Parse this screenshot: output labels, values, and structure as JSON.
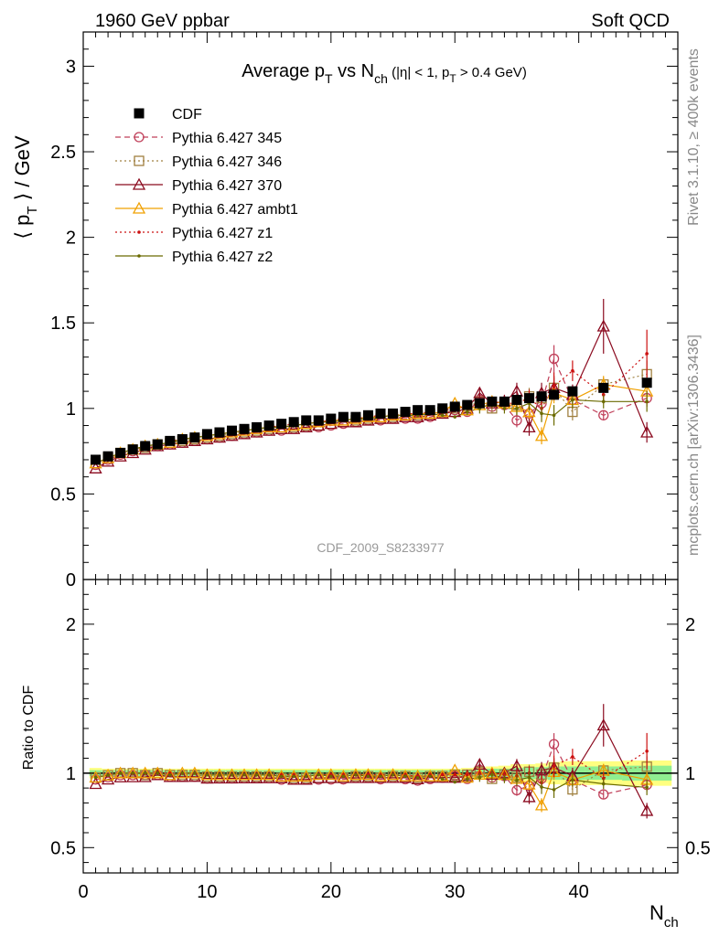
{
  "header": {
    "left": "1960 GeV ppbar",
    "right": "Soft QCD"
  },
  "side_texts": {
    "rivet": "Rivet 3.1.10, ≥ 400k events",
    "mcplots": "mcplots.cern.ch [arXiv:1306.3436]"
  },
  "colors": {
    "CDF": "#000000",
    "p345": "#c0405a",
    "p346": "#a08040",
    "p370": "#8b0a1f",
    "ambt1": "#f0a000",
    "z1": "#cc1010",
    "z2": "#6b6b00",
    "band_green": "#90ee90",
    "band_yellow": "#ffff80"
  },
  "chart_data": [
    {
      "type": "scatter",
      "title_parts": {
        "main": "Average p",
        "sub1": "T",
        "mid": " vs N",
        "sub2": "ch",
        "cut1": " (|η| < 1, p",
        "cut_sub": "T",
        "cut2": " > 0.4 GeV)"
      },
      "ylabel_parts": {
        "a": "⟨ p",
        "sub": "T",
        "b": " ⟩ / GeV"
      },
      "xlabel_parts": {
        "a": "N",
        "sub": "ch"
      },
      "analysis_label": "CDF_2009_S8233977",
      "xlim": [
        0,
        48
      ],
      "ylim": [
        0,
        3.2
      ],
      "yticks": [
        {
          "v": 0,
          "label": "0"
        },
        {
          "v": 0.5,
          "label": "0.5"
        },
        {
          "v": 1,
          "label": "1"
        },
        {
          "v": 1.5,
          "label": "1.5"
        },
        {
          "v": 2,
          "label": "2"
        },
        {
          "v": 2.5,
          "label": "2.5"
        },
        {
          "v": 3,
          "label": "3"
        }
      ],
      "xticks": [
        {
          "v": 0,
          "label": "0"
        },
        {
          "v": 10,
          "label": "10"
        },
        {
          "v": 20,
          "label": "20"
        },
        {
          "v": 30,
          "label": "30"
        },
        {
          "v": 40,
          "label": "40"
        }
      ],
      "series": [
        {
          "key": "CDF",
          "name": "CDF",
          "marker": "filled-square",
          "line": "none",
          "x": [
            1,
            2,
            3,
            4,
            5,
            6,
            7,
            8,
            9,
            10,
            11,
            12,
            13,
            14,
            15,
            16,
            17,
            18,
            19,
            20,
            21,
            22,
            23,
            24,
            25,
            26,
            27,
            28,
            29,
            30,
            31,
            32,
            33,
            34,
            35,
            36,
            37,
            38,
            39.5,
            42,
            45.5
          ],
          "y": [
            0.7,
            0.72,
            0.74,
            0.76,
            0.78,
            0.79,
            0.81,
            0.82,
            0.83,
            0.85,
            0.86,
            0.87,
            0.88,
            0.89,
            0.9,
            0.91,
            0.92,
            0.93,
            0.93,
            0.94,
            0.95,
            0.95,
            0.96,
            0.97,
            0.97,
            0.98,
            0.99,
            0.99,
            1.0,
            1.01,
            1.02,
            1.03,
            1.04,
            1.04,
            1.05,
            1.06,
            1.07,
            1.08,
            1.1,
            1.12,
            1.15
          ]
        },
        {
          "key": "p345",
          "name": "Pythia 6.427 345",
          "marker": "open-circle",
          "line": "dashed",
          "x": [
            1,
            2,
            3,
            4,
            5,
            6,
            7,
            8,
            9,
            10,
            11,
            12,
            13,
            14,
            15,
            16,
            17,
            18,
            19,
            20,
            21,
            22,
            23,
            24,
            25,
            26,
            27,
            28,
            29,
            30,
            31,
            32,
            33,
            34,
            35,
            36,
            37,
            38,
            39.5,
            42,
            45.5
          ],
          "y": [
            0.67,
            0.7,
            0.73,
            0.75,
            0.77,
            0.78,
            0.79,
            0.8,
            0.81,
            0.82,
            0.83,
            0.84,
            0.85,
            0.86,
            0.87,
            0.87,
            0.88,
            0.89,
            0.89,
            0.9,
            0.91,
            0.92,
            0.93,
            0.93,
            0.94,
            0.94,
            0.94,
            0.95,
            0.97,
            0.99,
            0.98,
            1.05,
            1.01,
            1.02,
            0.93,
            0.97,
            1.03,
            1.29,
            1.05,
            0.96,
            1.06
          ],
          "err": [
            0,
            0,
            0,
            0,
            0,
            0,
            0,
            0,
            0,
            0,
            0,
            0,
            0,
            0,
            0,
            0,
            0,
            0,
            0,
            0,
            0,
            0,
            0,
            0,
            0,
            0,
            0,
            0,
            0,
            0,
            0.02,
            0.03,
            0.03,
            0.03,
            0.04,
            0.05,
            0.05,
            0.08,
            0.06,
            0.03,
            0.05
          ]
        },
        {
          "key": "p346",
          "name": "Pythia 6.427 346",
          "marker": "open-square",
          "line": "dotted",
          "x": [
            1,
            2,
            3,
            4,
            5,
            6,
            7,
            8,
            9,
            10,
            11,
            12,
            13,
            14,
            15,
            16,
            17,
            18,
            19,
            20,
            21,
            22,
            23,
            24,
            25,
            26,
            27,
            28,
            29,
            30,
            31,
            32,
            33,
            34,
            35,
            36,
            37,
            38,
            39.5,
            42,
            45.5
          ],
          "y": [
            0.68,
            0.71,
            0.74,
            0.76,
            0.77,
            0.79,
            0.8,
            0.81,
            0.82,
            0.83,
            0.84,
            0.85,
            0.86,
            0.87,
            0.88,
            0.88,
            0.89,
            0.9,
            0.9,
            0.91,
            0.92,
            0.93,
            0.94,
            0.94,
            0.95,
            0.96,
            0.96,
            0.97,
            0.98,
            1.0,
            1.01,
            1.04,
            1.0,
            1.03,
            1.02,
            1.07,
            1.06,
            1.12,
            0.98,
            1.14,
            1.2
          ],
          "err": [
            0,
            0,
            0,
            0,
            0,
            0,
            0,
            0,
            0,
            0,
            0,
            0,
            0,
            0,
            0,
            0,
            0,
            0,
            0,
            0,
            0,
            0,
            0,
            0,
            0,
            0,
            0,
            0,
            0,
            0,
            0.02,
            0.03,
            0.03,
            0.03,
            0.04,
            0.05,
            0.05,
            0.06,
            0.05,
            0.04,
            0.08
          ]
        },
        {
          "key": "p370",
          "name": "Pythia 6.427 370",
          "marker": "open-triangle",
          "line": "solid",
          "x": [
            1,
            2,
            3,
            4,
            5,
            6,
            7,
            8,
            9,
            10,
            11,
            12,
            13,
            14,
            15,
            16,
            17,
            18,
            19,
            20,
            21,
            22,
            23,
            24,
            25,
            26,
            27,
            28,
            29,
            30,
            31,
            32,
            33,
            34,
            35,
            36,
            37,
            38,
            39.5,
            42,
            45.5
          ],
          "y": [
            0.65,
            0.69,
            0.72,
            0.74,
            0.76,
            0.78,
            0.79,
            0.8,
            0.81,
            0.82,
            0.83,
            0.84,
            0.85,
            0.86,
            0.87,
            0.88,
            0.88,
            0.89,
            0.9,
            0.91,
            0.92,
            0.92,
            0.93,
            0.94,
            0.94,
            0.95,
            0.95,
            0.96,
            0.97,
            0.98,
            1.0,
            1.09,
            1.03,
            1.04,
            1.1,
            0.89,
            1.09,
            1.12,
            1.08,
            1.48,
            0.86
          ],
          "err": [
            0,
            0,
            0,
            0,
            0,
            0,
            0,
            0,
            0,
            0,
            0,
            0,
            0,
            0,
            0,
            0,
            0,
            0,
            0,
            0,
            0,
            0,
            0,
            0,
            0,
            0,
            0,
            0,
            0,
            0,
            0.02,
            0.03,
            0.03,
            0.04,
            0.05,
            0.05,
            0.06,
            0.07,
            0.06,
            0.16,
            0.06
          ]
        },
        {
          "key": "ambt1",
          "name": "Pythia 6.427 ambt1",
          "marker": "open-triangle",
          "line": "solid",
          "x": [
            1,
            2,
            3,
            4,
            5,
            6,
            7,
            8,
            9,
            10,
            11,
            12,
            13,
            14,
            15,
            16,
            17,
            18,
            19,
            20,
            21,
            22,
            23,
            24,
            25,
            26,
            27,
            28,
            29,
            30,
            31,
            32,
            33,
            34,
            35,
            36,
            37,
            38,
            39.5,
            42,
            45.5
          ],
          "y": [
            0.68,
            0.71,
            0.74,
            0.76,
            0.78,
            0.79,
            0.8,
            0.82,
            0.83,
            0.84,
            0.85,
            0.86,
            0.87,
            0.88,
            0.89,
            0.89,
            0.9,
            0.91,
            0.92,
            0.93,
            0.93,
            0.94,
            0.95,
            0.95,
            0.96,
            0.96,
            0.97,
            0.97,
            0.98,
            1.03,
            0.99,
            1.02,
            1.04,
            1.03,
            1.01,
            0.98,
            0.84,
            1.09,
            1.05,
            1.14,
            1.1
          ],
          "err": [
            0,
            0,
            0,
            0,
            0,
            0,
            0,
            0,
            0,
            0,
            0,
            0,
            0,
            0,
            0,
            0,
            0,
            0,
            0,
            0,
            0,
            0,
            0,
            0,
            0,
            0,
            0,
            0,
            0,
            0,
            0.02,
            0.03,
            0.03,
            0.03,
            0.04,
            0.04,
            0.05,
            0.06,
            0.05,
            0.05,
            0.06
          ]
        },
        {
          "key": "z1",
          "name": "Pythia 6.427 z1",
          "marker": "dot",
          "line": "dotted",
          "x": [
            1,
            2,
            3,
            4,
            5,
            6,
            7,
            8,
            9,
            10,
            11,
            12,
            13,
            14,
            15,
            16,
            17,
            18,
            19,
            20,
            21,
            22,
            23,
            24,
            25,
            26,
            27,
            28,
            29,
            30,
            31,
            32,
            33,
            34,
            35,
            36,
            37,
            38,
            39.5,
            42,
            45.5
          ],
          "y": [
            0.68,
            0.71,
            0.74,
            0.76,
            0.78,
            0.79,
            0.81,
            0.82,
            0.83,
            0.84,
            0.85,
            0.86,
            0.87,
            0.88,
            0.89,
            0.9,
            0.91,
            0.91,
            0.92,
            0.93,
            0.94,
            0.94,
            0.95,
            0.96,
            0.96,
            0.97,
            0.97,
            0.98,
            0.99,
            1.0,
            1.01,
            1.03,
            1.04,
            1.03,
            1.03,
            1.06,
            1.0,
            1.13,
            1.22,
            1.08,
            1.32
          ],
          "err": [
            0,
            0,
            0,
            0,
            0,
            0,
            0,
            0,
            0,
            0,
            0,
            0,
            0,
            0,
            0,
            0,
            0,
            0,
            0,
            0,
            0,
            0,
            0,
            0,
            0,
            0,
            0,
            0,
            0,
            0,
            0.02,
            0.03,
            0.03,
            0.03,
            0.04,
            0.05,
            0.05,
            0.08,
            0.06,
            0.05,
            0.14
          ]
        },
        {
          "key": "z2",
          "name": "Pythia 6.427 z2",
          "marker": "dot",
          "line": "solid",
          "x": [
            1,
            2,
            3,
            4,
            5,
            6,
            7,
            8,
            9,
            10,
            11,
            12,
            13,
            14,
            15,
            16,
            17,
            18,
            19,
            20,
            21,
            22,
            23,
            24,
            25,
            26,
            27,
            28,
            29,
            30,
            31,
            32,
            33,
            34,
            35,
            36,
            37,
            38,
            39.5,
            42,
            45.5
          ],
          "y": [
            0.68,
            0.71,
            0.74,
            0.76,
            0.78,
            0.79,
            0.8,
            0.82,
            0.83,
            0.84,
            0.85,
            0.86,
            0.87,
            0.88,
            0.89,
            0.89,
            0.9,
            0.91,
            0.92,
            0.92,
            0.93,
            0.94,
            0.94,
            0.95,
            0.96,
            0.96,
            0.96,
            0.97,
            0.96,
            0.95,
            0.98,
            1.0,
            1.03,
            1.0,
            1.0,
            1.03,
            0.97,
            0.96,
            1.05,
            1.04,
            1.04
          ],
          "err": [
            0,
            0,
            0,
            0,
            0,
            0,
            0,
            0,
            0,
            0,
            0,
            0,
            0,
            0,
            0,
            0,
            0,
            0,
            0,
            0,
            0,
            0,
            0,
            0,
            0,
            0,
            0,
            0,
            0,
            0,
            0.02,
            0.03,
            0.03,
            0.03,
            0.04,
            0.04,
            0.05,
            0.06,
            0.05,
            0.04,
            0.06
          ]
        }
      ]
    },
    {
      "type": "scatter",
      "ylabel": "Ratio to CDF",
      "ylim": [
        0.33,
        2.3
      ],
      "yticks": [
        {
          "v": 0.5,
          "label": "0.5"
        },
        {
          "v": 1,
          "label": "1"
        },
        {
          "v": 2,
          "label": "2"
        }
      ],
      "reference_line": 1,
      "bands": {
        "x_edges": [
          0.5,
          1.5,
          2.5,
          3.5,
          4.5,
          5.5,
          6.5,
          7.5,
          8.5,
          9.5,
          10.5,
          11.5,
          12.5,
          13.5,
          14.5,
          15.5,
          16.5,
          17.5,
          18.5,
          19.5,
          20.5,
          21.5,
          22.5,
          23.5,
          24.5,
          25.5,
          26.5,
          27.5,
          28.5,
          29.5,
          30.5,
          31.5,
          32.5,
          33.5,
          34.5,
          35.5,
          36.5,
          37.5,
          38.5,
          40.5,
          43.5,
          47.5
        ],
        "green_halfwidth": [
          0.02,
          0.02,
          0.02,
          0.02,
          0.02,
          0.02,
          0.02,
          0.02,
          0.02,
          0.02,
          0.02,
          0.02,
          0.02,
          0.02,
          0.02,
          0.02,
          0.02,
          0.02,
          0.02,
          0.02,
          0.02,
          0.02,
          0.02,
          0.02,
          0.02,
          0.02,
          0.02,
          0.02,
          0.02,
          0.02,
          0.02,
          0.025,
          0.03,
          0.03,
          0.035,
          0.04,
          0.04,
          0.045,
          0.045,
          0.045,
          0.05
        ],
        "yellow_halfwidth": [
          0.035,
          0.03,
          0.03,
          0.03,
          0.03,
          0.03,
          0.03,
          0.03,
          0.03,
          0.03,
          0.03,
          0.03,
          0.03,
          0.03,
          0.03,
          0.03,
          0.03,
          0.03,
          0.03,
          0.03,
          0.03,
          0.03,
          0.03,
          0.03,
          0.03,
          0.03,
          0.03,
          0.03,
          0.03,
          0.03,
          0.035,
          0.04,
          0.045,
          0.05,
          0.06,
          0.06,
          0.065,
          0.075,
          0.08,
          0.08,
          0.085
        ]
      },
      "series_ratio_of_top": true
    }
  ]
}
